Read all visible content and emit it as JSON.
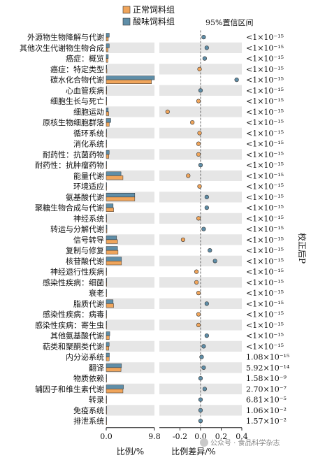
{
  "chart_data": {
    "type": "bar",
    "legend": {
      "items": [
        {
          "label": "正常饲料组",
          "color": "#F0A55B"
        },
        {
          "label": "酸味饲料组",
          "color": "#5F8EA8"
        }
      ],
      "ci_label": "95%置信区间"
    },
    "categories": [
      "外源物生物降解与代谢",
      "其他次生代谢物生物合成",
      "癌症：概览",
      "癌症：特定类型",
      "碳水化合物代谢",
      "心血管疾病",
      "细胞生长与死亡",
      "细胞运动",
      "原核生物细胞群落",
      "循环系统",
      "消化系统",
      "耐药性：抗菌药物",
      "耐药性：抗肿瘤药物",
      "能量代谢",
      "环境适应",
      "氨基酸代谢",
      "聚糖生物合成与代谢",
      "神经系统",
      "转运与分解代谢",
      "信号转导",
      "复制与修复",
      "核苷酸代谢",
      "神经退行性疾病",
      "感染性疾病：细菌",
      "衰老",
      "脂质代谢",
      "感染性疾病：病毒",
      "感染性疾病：寄生虫",
      "其他氨基酸代谢",
      "萜类和聚酮类代谢",
      "内分泌系统",
      "翻译",
      "物质依赖",
      "辅因子和维生素代谢",
      "转录",
      "免疫系统",
      "排泄系统"
    ],
    "series": [
      {
        "name": "正常饲料组",
        "color": "#F0A55B",
        "values": [
          0.42,
          0.36,
          0.32,
          0.14,
          9.2,
          0.1,
          0.1,
          0.52,
          0.62,
          0.06,
          0.06,
          0.52,
          0.04,
          3.4,
          0.04,
          5.8,
          1.5,
          0.04,
          0.14,
          2.3,
          2.4,
          3.1,
          0.06,
          0.1,
          0.04,
          1.5,
          0.04,
          0.04,
          0.62,
          0.52,
          0.6,
          3.0,
          0.04,
          3.4,
          0.02,
          0.02,
          0.01
        ]
      },
      {
        "name": "酸味饲料组",
        "color": "#5F8EA8",
        "values": [
          0.62,
          0.62,
          0.42,
          0.1,
          9.8,
          0.1,
          0.1,
          0.4,
          0.92,
          0.06,
          0.06,
          0.6,
          0.04,
          3.0,
          0.04,
          5.8,
          1.4,
          0.04,
          0.14,
          2.1,
          2.3,
          3.1,
          0.06,
          0.1,
          0.04,
          1.4,
          0.04,
          0.04,
          0.72,
          0.6,
          0.64,
          3.1,
          0.04,
          3.5,
          0.02,
          0.02,
          0.01
        ]
      }
    ],
    "differences": [
      0.03,
      0.06,
      0.04,
      -0.01,
      0.35,
      0.0,
      -0.02,
      -0.32,
      -0.08,
      -0.01,
      -0.02,
      -0.02,
      0.0,
      -0.12,
      -0.01,
      0.06,
      0.06,
      -0.02,
      0.03,
      -0.17,
      0.09,
      0.14,
      -0.04,
      -0.04,
      -0.02,
      0.06,
      -0.02,
      -0.02,
      0.06,
      0.03,
      0.01,
      0.03,
      0.0,
      0.04,
      0.0,
      0.0,
      0.0
    ],
    "p_values": [
      "<1×10⁻¹⁵",
      "<1×10⁻¹⁵",
      "<1×10⁻¹⁵",
      "<1×10⁻¹⁵",
      "<1×10⁻¹⁵",
      "<1×10⁻¹⁵",
      "<1×10⁻¹⁵",
      "<1×10⁻¹⁵",
      "<1×10⁻¹⁵",
      "<1×10⁻¹⁵",
      "<1×10⁻¹⁵",
      "<1×10⁻¹⁵",
      "<1×10⁻¹⁵",
      "<1×10⁻¹⁵",
      "<1×10⁻¹⁵",
      "<1×10⁻¹⁵",
      "<1×10⁻¹⁵",
      "<1×10⁻¹⁵",
      "<1×10⁻¹⁵",
      "<1×10⁻¹⁵",
      "<1×10⁻¹⁵",
      "<1×10⁻¹⁵",
      "<1×10⁻¹⁵",
      "<1×10⁻¹⁵",
      "<1×10⁻¹⁵",
      "<1×10⁻¹⁵",
      "<1×10⁻¹⁵",
      "<1×10⁻¹⁵",
      "<1×10⁻¹⁵",
      "<1×10⁻¹⁵",
      "1.08×10⁻¹⁵",
      "5.92×10⁻¹⁴",
      "1.58×10⁻⁹",
      "2.70×10⁻⁷",
      "6.81×10⁻⁵",
      "1.06×10⁻²",
      "1.57×10⁻²"
    ],
    "left_axis": {
      "label": "比例/%",
      "range": [
        0,
        9.8
      ],
      "ticks": [
        "0.0",
        "9.8"
      ]
    },
    "right_axis": {
      "label": "比例差异/%",
      "range": [
        -0.4,
        0.4
      ],
      "ticks": [
        "-0.2",
        "0.0",
        "0.2",
        "0.4"
      ]
    },
    "p_label": "校正后P",
    "grid": false
  },
  "watermark": "公众号 · 食品科学杂志"
}
